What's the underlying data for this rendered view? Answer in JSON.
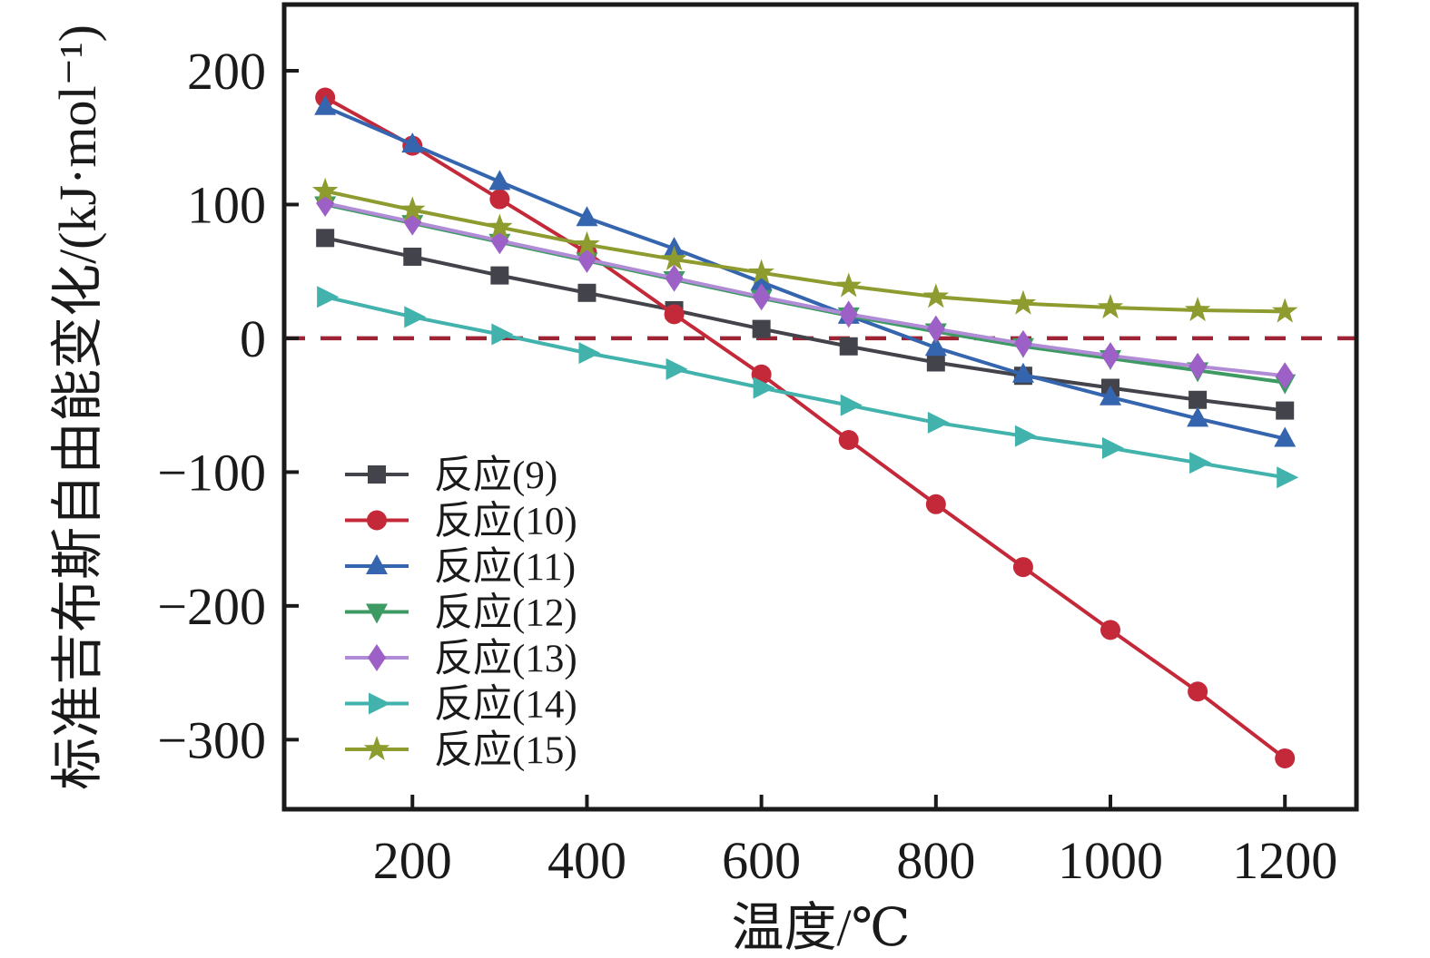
{
  "figure": {
    "background": "#ffffff",
    "frame_color": "#1a1a1a"
  },
  "chart_data": {
    "type": "line",
    "title": "",
    "xlabel": "温度/℃",
    "ylabel": "标准吉布斯自由能变化/(kJ·mol⁻¹)",
    "x": [
      100,
      200,
      300,
      400,
      500,
      600,
      700,
      800,
      900,
      1000,
      1100,
      1200
    ],
    "xlim": [
      53,
      1282
    ],
    "ylim": [
      -352,
      249.5
    ],
    "grid": false,
    "legend_position": "inside lower-left",
    "x_ticks": [
      {
        "v": 200,
        "label": "200"
      },
      {
        "v": 400,
        "label": "400"
      },
      {
        "v": 600,
        "label": "600"
      },
      {
        "v": 800,
        "label": "800"
      },
      {
        "v": 1000,
        "label": "1000"
      },
      {
        "v": 1200,
        "label": "1200"
      }
    ],
    "y_ticks": [
      {
        "v": 200,
        "label": "200"
      },
      {
        "v": 100,
        "label": "100"
      },
      {
        "v": 0,
        "label": "0"
      },
      {
        "v": -100,
        "label": "−100"
      },
      {
        "v": -200,
        "label": "−200"
      },
      {
        "v": -300,
        "label": "−300"
      }
    ],
    "zero_line": {
      "y": 0,
      "color": "#9e2433",
      "style": "dashed"
    },
    "series": [
      {
        "name": "反应(9)",
        "marker": "square",
        "color": "#43434b",
        "marker_color": "#43434b",
        "values": [
          75,
          61,
          47,
          34,
          21,
          7,
          -6,
          -18,
          -28,
          -37,
          -46,
          -54
        ]
      },
      {
        "name": "反应(10)",
        "marker": "circle",
        "color": "#c4293a",
        "marker_color": "#c4293a",
        "values": [
          180,
          144,
          104,
          64,
          18,
          -27,
          -76,
          -124,
          -171,
          -218,
          -264,
          -314
        ]
      },
      {
        "name": "反应(11)",
        "marker": "triangle-up",
        "color": "#3565af",
        "marker_color": "#3565af",
        "values": [
          173,
          145,
          117,
          90,
          67,
          42,
          17,
          -7,
          -27,
          -44,
          -60,
          -75
        ]
      },
      {
        "name": "反应(12)",
        "marker": "triangle-down",
        "color": "#3d9a62",
        "marker_color": "#3d9a62",
        "values": [
          100,
          86,
          72,
          58,
          44,
          30,
          17,
          5,
          -6,
          -15,
          -24,
          -33
        ]
      },
      {
        "name": "反应(13)",
        "marker": "diamond",
        "color": "#b18cd6",
        "marker_color": "#9c60c6",
        "values": [
          101,
          87,
          73,
          59,
          45,
          31,
          18,
          7,
          -4,
          -13,
          -21,
          -28
        ]
      },
      {
        "name": "反应(14)",
        "marker": "triangle-right",
        "color": "#42b2ac",
        "marker_color": "#42b2ac",
        "values": [
          31,
          16,
          3,
          -11,
          -23,
          -37,
          -50,
          -63,
          -73,
          -82,
          -93,
          -104
        ]
      },
      {
        "name": "反应(15)",
        "marker": "star",
        "color": "#8e9b2e",
        "marker_color": "#8e9b2e",
        "values": [
          110,
          96,
          83,
          70,
          59,
          49,
          39,
          31,
          26,
          23,
          21,
          20
        ]
      }
    ]
  }
}
